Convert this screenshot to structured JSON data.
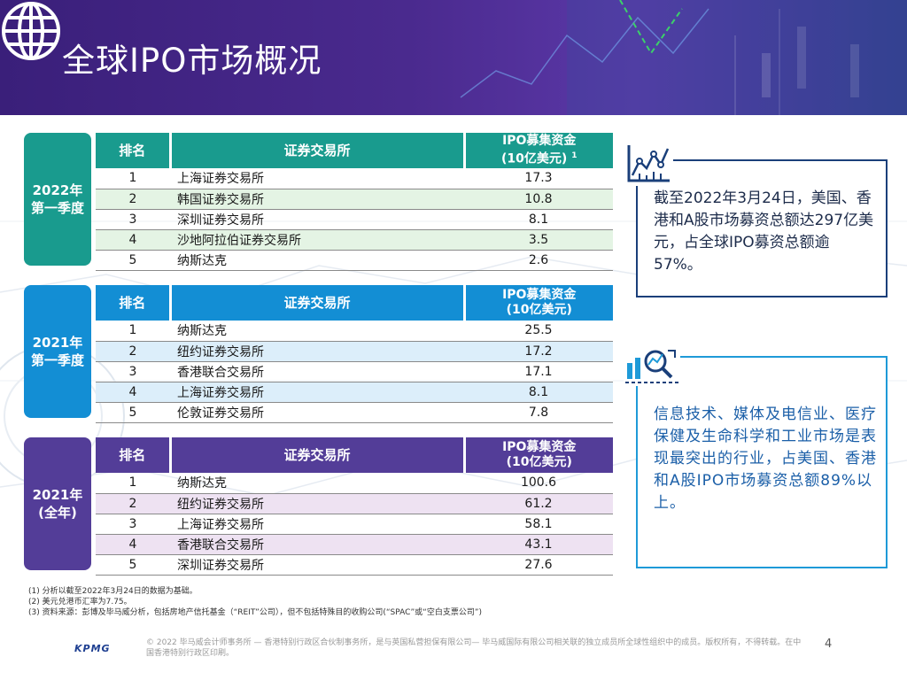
{
  "header": {
    "title": "全球IPO市场概况"
  },
  "colors": {
    "banner": "#3a1f7a",
    "teal": "#199b8e",
    "blue": "#138ed4",
    "purple": "#533d98",
    "box1_border": "#1a3f7a",
    "box2_border": "#1e9ad8"
  },
  "table_headers": {
    "rank": "排名",
    "exchange": "证券交易所",
    "amount_line1": "IPO募集资金",
    "amount_line2": "(10亿美元)",
    "footnote_mark": "1"
  },
  "sections": [
    {
      "period_line1": "2022年",
      "period_line2": "第一季度",
      "rows": [
        {
          "rank": "1",
          "exchange": "上海证券交易所",
          "value": "17.3"
        },
        {
          "rank": "2",
          "exchange": "韩国证券交易所",
          "value": "10.8"
        },
        {
          "rank": "3",
          "exchange": "深圳证券交易所",
          "value": "8.1"
        },
        {
          "rank": "4",
          "exchange": "沙地阿拉伯证券交易所",
          "value": "3.5"
        },
        {
          "rank": "5",
          "exchange": "纳斯达克",
          "value": "2.6"
        }
      ]
    },
    {
      "period_line1": "2021年",
      "period_line2": "第一季度",
      "rows": [
        {
          "rank": "1",
          "exchange": "纳斯达克",
          "value": "25.5"
        },
        {
          "rank": "2",
          "exchange": "纽约证券交易所",
          "value": "17.2"
        },
        {
          "rank": "3",
          "exchange": "香港联合交易所",
          "value": "17.1"
        },
        {
          "rank": "4",
          "exchange": "上海证券交易所",
          "value": "8.1"
        },
        {
          "rank": "5",
          "exchange": "伦敦证券交易所",
          "value": "7.8"
        }
      ]
    },
    {
      "period_line1": "2021年",
      "period_line2": "(全年)",
      "rows": [
        {
          "rank": "1",
          "exchange": "纳斯达克",
          "value": "100.6"
        },
        {
          "rank": "2",
          "exchange": "纽约证券交易所",
          "value": "61.2"
        },
        {
          "rank": "3",
          "exchange": "上海证券交易所",
          "value": "58.1"
        },
        {
          "rank": "4",
          "exchange": "香港联合交易所",
          "value": "43.1"
        },
        {
          "rank": "5",
          "exchange": "深圳证券交易所",
          "value": "27.6"
        }
      ]
    }
  ],
  "box1": {
    "icon": "line-chart-icon",
    "text": "截至2022年3月24日，美国、香港和A股市场募资总额达297亿美元，占全球IPO募资总额逾57%。"
  },
  "box2": {
    "icon": "magnifier-analytics-icon",
    "text": "信息技术、媒体及电信业、医疗保健及生命科学和工业市场是表现最突出的行业，占美国、香港和A股IPO市场募资总额89%以上。"
  },
  "notes": [
    "(1) 分析以截至2022年3月24日的数据为基础。",
    "(2) 美元兑港币汇率为7.75。",
    "(3) 资料来源：彭博及毕马威分析，包括房地产信托基金（“REIT”公司），但不包括特殊目的收购公司(“SPAC”或“空白支票公司”)"
  ],
  "footer": {
    "copyright": "© 2022 毕马威会计师事务所 — 香港特别行政区合伙制事务所，是与英国私营担保有限公司— 毕马威国际有限公司相关联的独立成员所全球性组织中的成员。版权所有，不得转载。在中国香港特别行政区印刷。",
    "logo": "KPMG",
    "page": "4"
  }
}
